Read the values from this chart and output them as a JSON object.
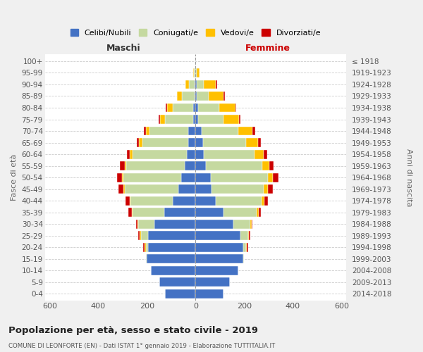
{
  "age_groups": [
    "0-4",
    "5-9",
    "10-14",
    "15-19",
    "20-24",
    "25-29",
    "30-34",
    "35-39",
    "40-44",
    "45-49",
    "50-54",
    "55-59",
    "60-64",
    "65-69",
    "70-74",
    "75-79",
    "80-84",
    "85-89",
    "90-94",
    "95-99",
    "100+"
  ],
  "birth_years": [
    "2014-2018",
    "2009-2013",
    "2004-2008",
    "1999-2003",
    "1994-1998",
    "1989-1993",
    "1984-1988",
    "1979-1983",
    "1974-1978",
    "1969-1973",
    "1964-1968",
    "1959-1963",
    "1954-1958",
    "1949-1953",
    "1944-1948",
    "1939-1943",
    "1934-1938",
    "1929-1933",
    "1924-1928",
    "1919-1923",
    "≤ 1918"
  ],
  "males_celibi": [
    125,
    150,
    185,
    200,
    195,
    195,
    170,
    130,
    95,
    70,
    60,
    45,
    35,
    30,
    30,
    10,
    10,
    5,
    5,
    1,
    1
  ],
  "males_coniugati": [
    0,
    0,
    0,
    5,
    10,
    30,
    65,
    128,
    172,
    222,
    238,
    240,
    225,
    190,
    160,
    115,
    85,
    50,
    22,
    5,
    0
  ],
  "males_vedovi": [
    0,
    0,
    0,
    0,
    5,
    5,
    5,
    5,
    5,
    5,
    5,
    5,
    10,
    12,
    15,
    22,
    22,
    22,
    15,
    5,
    0
  ],
  "males_divorziati": [
    0,
    0,
    0,
    0,
    5,
    5,
    5,
    15,
    15,
    20,
    20,
    20,
    12,
    10,
    8,
    5,
    5,
    0,
    0,
    0,
    0
  ],
  "females_nubili": [
    115,
    140,
    175,
    195,
    195,
    185,
    155,
    115,
    82,
    65,
    62,
    42,
    35,
    30,
    25,
    10,
    10,
    5,
    5,
    0,
    0
  ],
  "females_coniugate": [
    0,
    0,
    0,
    5,
    12,
    30,
    70,
    135,
    190,
    215,
    235,
    232,
    208,
    178,
    152,
    105,
    88,
    48,
    28,
    5,
    0
  ],
  "females_vedove": [
    0,
    0,
    0,
    0,
    5,
    5,
    5,
    10,
    12,
    18,
    22,
    28,
    38,
    48,
    58,
    65,
    65,
    62,
    50,
    12,
    0
  ],
  "females_divorziate": [
    0,
    0,
    0,
    0,
    5,
    5,
    5,
    10,
    15,
    20,
    22,
    20,
    15,
    12,
    10,
    5,
    5,
    5,
    5,
    0,
    0
  ],
  "color_celibi": "#4472c4",
  "color_coniug": "#c5d9a0",
  "color_vedov": "#ffc000",
  "color_divorz": "#cc0000",
  "xlim": 620,
  "bg_color": "#f0f0f0",
  "plot_bg_color": "#ffffff",
  "title": "Popolazione per età, sesso e stato civile - 2019",
  "subtitle": "COMUNE DI LEONFORTE (EN) - Dati ISTAT 1° gennaio 2019 - Elaborazione TUTTITALIA.IT",
  "ylabel_left": "Fasce di età",
  "ylabel_right": "Anni di nascita",
  "maschi_label": "Maschi",
  "femmine_label": "Femmine",
  "femmine_color": "#cc0000",
  "maschi_color": "#333333",
  "legend_labels": [
    "Celibi/Nubili",
    "Coniugati/e",
    "Vedovi/e",
    "Divorziati/e"
  ]
}
